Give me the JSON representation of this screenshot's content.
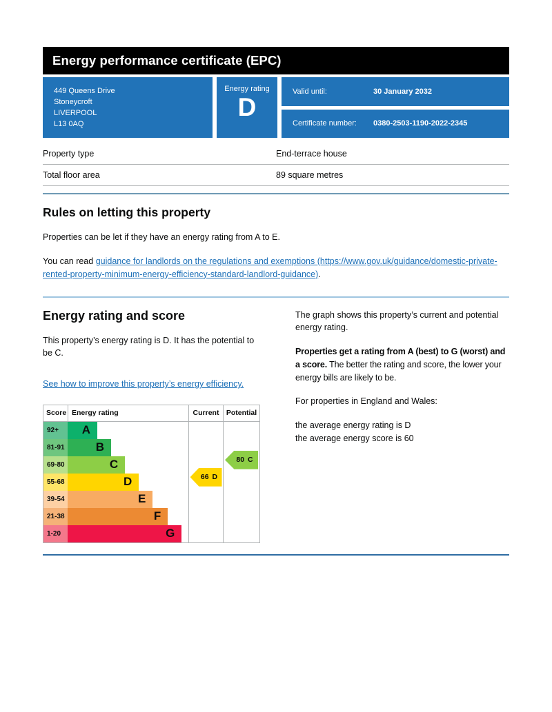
{
  "header": {
    "title": "Energy performance certificate (EPC)"
  },
  "summary": {
    "address_lines": [
      "449 Queens Drive",
      "Stoneycroft",
      "LIVERPOOL",
      "L13 0AQ"
    ],
    "energy_rating_label": "Energy rating",
    "energy_rating": "D",
    "valid_until_label": "Valid until:",
    "valid_until_value": "30 January 2032",
    "certificate_number_label": "Certificate number:",
    "certificate_number_value": "0380-2503-1190-2022-2345"
  },
  "property_details": {
    "rows": [
      {
        "label": "Property type",
        "value": "End-terrace house"
      },
      {
        "label": "Total floor area",
        "value": "89 square metres"
      }
    ]
  },
  "rules_section": {
    "heading": "Rules on letting this property",
    "paragraph1": "Properties can be let if they have an energy rating from A to E.",
    "paragraph2_prefix": "You can read ",
    "link_text": "guidance for landlords on the regulations and exemptions (https://www.gov.uk/guidance/domestic-private-rented-property-minimum-energy-efficiency-standard-landlord-guidance)",
    "paragraph2_suffix": "."
  },
  "rating_section": {
    "heading": "Energy rating and score",
    "paragraph1": "This property’s energy rating is D. It has the potential to be C.",
    "improve_link_text": "See how to improve this property’s energy efficiency.",
    "right_paragraph1": "The graph shows this property’s current and potential energy rating.",
    "right_paragraph2_bold": "Properties get a rating from A (best) to G (worst) and a score.",
    "right_paragraph2_rest": " The better the rating and score, the lower your energy bills are likely to be.",
    "right_paragraph3": "For properties in England and Wales:",
    "average_line1": "the average energy rating is D",
    "average_line2": "the average energy score is 60"
  },
  "chart_data": {
    "type": "bar",
    "title": "Energy rating and score",
    "columns": [
      "Score",
      "Energy rating",
      "Current",
      "Potential"
    ],
    "bands": [
      {
        "score_range": "92+",
        "letter": "A",
        "color": "#0db16b",
        "score_color": "#62c292",
        "bar_width_pct": 24.6
      },
      {
        "score_range": "81-91",
        "letter": "B",
        "color": "#2eb054",
        "score_color": "#6fc67f",
        "bar_width_pct": 36.0
      },
      {
        "score_range": "69-80",
        "letter": "C",
        "color": "#8dce46",
        "score_color": "#b8e08c",
        "bar_width_pct": 47.5
      },
      {
        "score_range": "55-68",
        "letter": "D",
        "color": "#ffd500",
        "score_color": "#ffe567",
        "bar_width_pct": 59.0
      },
      {
        "score_range": "39-54",
        "letter": "E",
        "color": "#f8ab62",
        "score_color": "#fdd0a4",
        "bar_width_pct": 70.5
      },
      {
        "score_range": "21-38",
        "letter": "F",
        "color": "#ec8a33",
        "score_color": "#f5b278",
        "bar_width_pct": 83.0
      },
      {
        "score_range": "1-20",
        "letter": "G",
        "color": "#ee1547",
        "score_color": "#f4778b",
        "bar_width_pct": 94.5
      }
    ],
    "current": {
      "score": "66",
      "letter": "D",
      "band_letter": "D",
      "color": "#ffd500"
    },
    "potential": {
      "score": "80",
      "letter": "C",
      "band_letter": "C",
      "color": "#8dce46"
    }
  }
}
